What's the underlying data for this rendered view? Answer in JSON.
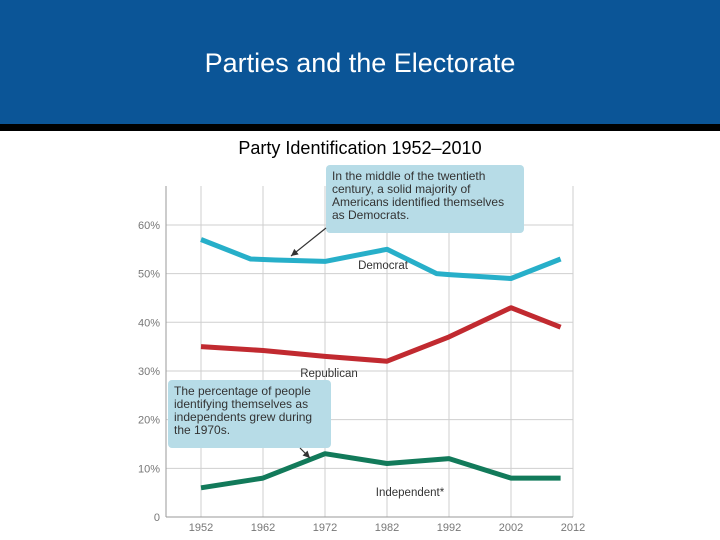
{
  "header": {
    "title": "Parties and the Electorate"
  },
  "colors": {
    "header_bg": "#0b5597",
    "callout_bg": "#b7dce7"
  },
  "chart_data": {
    "type": "line",
    "title": "Party Identification 1952–2010",
    "x": [
      1952,
      1962,
      1972,
      1982,
      1992,
      2002,
      2012
    ],
    "xtick_labels": [
      "1952",
      "1962",
      "1972",
      "1982",
      "1992",
      "2002",
      "2012"
    ],
    "ytick_labels": [
      "0",
      "10%",
      "20%",
      "30%",
      "40%",
      "50%",
      "60%"
    ],
    "ylim": [
      0,
      68
    ],
    "grid": true,
    "series": [
      {
        "name": "Democrat",
        "color": "#27afc9",
        "x": [
          1952,
          1960,
          1964,
          1972,
          1982,
          1990,
          1992,
          2002,
          2010
        ],
        "values": [
          57,
          53,
          52.8,
          52.5,
          55,
          50,
          49.8,
          49,
          53
        ]
      },
      {
        "name": "Republican",
        "color": "#c12a30",
        "x": [
          1952,
          1962,
          1972,
          1982,
          1992,
          2002,
          2010
        ],
        "values": [
          35,
          34.2,
          33,
          32,
          37,
          43,
          39
        ]
      },
      {
        "name": "Independent*",
        "color": "#127a5a",
        "x": [
          1952,
          1962,
          1972,
          1982,
          1992,
          2002,
          2010
        ],
        "values": [
          6,
          8,
          13,
          11,
          12,
          8,
          8
        ]
      }
    ],
    "annotations": [
      {
        "text": "In the middle of the twentieth century, a solid majority of Americans identified themselves as Democrats.",
        "target_x": 1966,
        "target_y": 53
      },
      {
        "text": "The percentage of people identifying themselves as independents grew during the 1970s.",
        "target_x": 1970,
        "target_y": 12.5
      }
    ]
  }
}
